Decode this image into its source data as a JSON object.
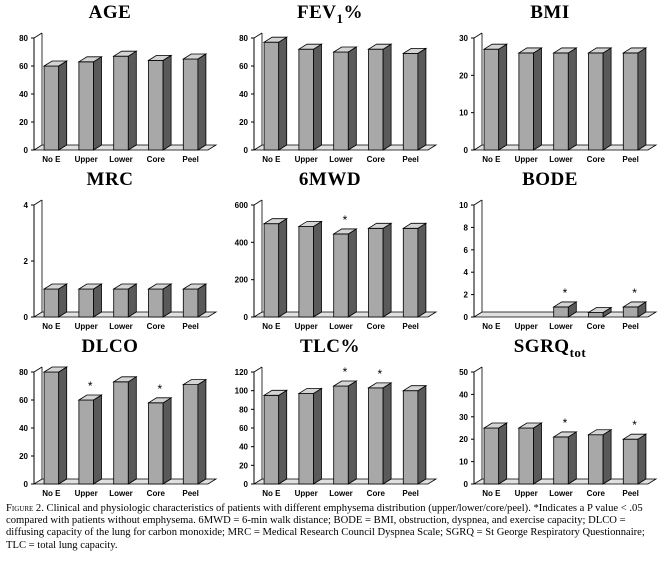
{
  "categories": [
    "No E",
    "Upper",
    "Lower",
    "Core",
    "Peel"
  ],
  "chart_data": [
    {
      "type": "bar",
      "title": "AGE",
      "subscript": "",
      "categories": [
        "No E",
        "Upper",
        "Lower",
        "Core",
        "Peel"
      ],
      "values": [
        60,
        63,
        67,
        64,
        65
      ],
      "ylim": [
        0,
        80
      ],
      "yticks": [
        0,
        20,
        40,
        60,
        80
      ],
      "significant": [
        false,
        false,
        false,
        false,
        false
      ]
    },
    {
      "type": "bar",
      "title": "FEV",
      "subscript": "1",
      "title_suffix": "%",
      "categories": [
        "No E",
        "Upper",
        "Lower",
        "Core",
        "Peel"
      ],
      "values": [
        77,
        72,
        70,
        72,
        69
      ],
      "ylim": [
        0,
        80
      ],
      "yticks": [
        0,
        20,
        40,
        60,
        80
      ],
      "significant": [
        false,
        false,
        false,
        false,
        false
      ]
    },
    {
      "type": "bar",
      "title": "BMI",
      "subscript": "",
      "categories": [
        "No E",
        "Upper",
        "Lower",
        "Core",
        "Peel"
      ],
      "values": [
        27,
        26,
        26,
        26,
        26
      ],
      "ylim": [
        0,
        30
      ],
      "yticks": [
        0,
        10,
        20,
        30
      ],
      "significant": [
        false,
        false,
        false,
        false,
        false
      ]
    },
    {
      "type": "bar",
      "title": "MRC",
      "subscript": "",
      "categories": [
        "No E",
        "Upper",
        "Lower",
        "Core",
        "Peel"
      ],
      "values": [
        1.0,
        1.0,
        1.0,
        1.0,
        1.0
      ],
      "ylim": [
        0,
        4
      ],
      "yticks": [
        0,
        2,
        4
      ],
      "significant": [
        false,
        false,
        false,
        false,
        false
      ]
    },
    {
      "type": "bar",
      "title": "6MWD",
      "subscript": "",
      "categories": [
        "No E",
        "Upper",
        "Lower",
        "Core",
        "Peel"
      ],
      "values": [
        500,
        485,
        445,
        475,
        475
      ],
      "ylim": [
        0,
        600
      ],
      "yticks": [
        0,
        200,
        400,
        600
      ],
      "significant": [
        false,
        false,
        true,
        false,
        false
      ]
    },
    {
      "type": "bar",
      "title": "BODE",
      "subscript": "",
      "categories": [
        "No E",
        "Upper",
        "Lower",
        "Core",
        "Peel"
      ],
      "values": [
        0.0,
        0.0,
        0.9,
        0.4,
        0.9
      ],
      "ylim": [
        0,
        10
      ],
      "yticks": [
        0,
        2,
        4,
        6,
        8,
        10
      ],
      "significant": [
        false,
        false,
        true,
        false,
        true
      ]
    },
    {
      "type": "bar",
      "title": "DLCO",
      "subscript": "",
      "categories": [
        "No E",
        "Upper",
        "Lower",
        "Core",
        "Peel"
      ],
      "values": [
        80,
        60,
        73,
        58,
        71
      ],
      "ylim": [
        0,
        80
      ],
      "yticks": [
        0,
        20,
        40,
        60,
        80
      ],
      "significant": [
        false,
        true,
        false,
        true,
        false
      ]
    },
    {
      "type": "bar",
      "title": "TLC%",
      "subscript": "",
      "categories": [
        "No E",
        "Upper",
        "Lower",
        "Core",
        "Peel"
      ],
      "values": [
        95,
        97,
        105,
        103,
        100
      ],
      "ylim": [
        0,
        120
      ],
      "yticks": [
        0,
        20,
        40,
        60,
        80,
        100,
        120
      ],
      "significant": [
        false,
        false,
        true,
        true,
        false
      ]
    },
    {
      "type": "bar",
      "title": "SGRQ",
      "subscript": "tot",
      "categories": [
        "No E",
        "Upper",
        "Lower",
        "Core",
        "Peel"
      ],
      "values": [
        25,
        25,
        21,
        22,
        20
      ],
      "ylim": [
        0,
        50
      ],
      "yticks": [
        0,
        10,
        20,
        30,
        40,
        50
      ],
      "significant": [
        false,
        false,
        true,
        false,
        true
      ]
    }
  ],
  "caption": {
    "figure_label": "Figure 2.",
    "text": " Clinical and physiologic characteristics of patients with different emphysema distribution (upper/lower/core/peel). *Indicates a P value < .05 compared with patients without emphysema. 6MWD = 6-min walk distance; BODE = BMI, obstruction, dyspnea, and exercise capacity; DLCO = diffusing capacity of the lung for carbon monoxide; MRC = Medical Research Council Dyspnea Scale; SGRQ = St George Respiratory Questionnaire; TLC = total lung capacity."
  },
  "colors": {
    "bar_front": "#a8a8a8",
    "bar_side": "#5a5a5a",
    "bar_top": "#d4d4d4",
    "floor": "#e0e0e0",
    "edge": "#000000"
  }
}
